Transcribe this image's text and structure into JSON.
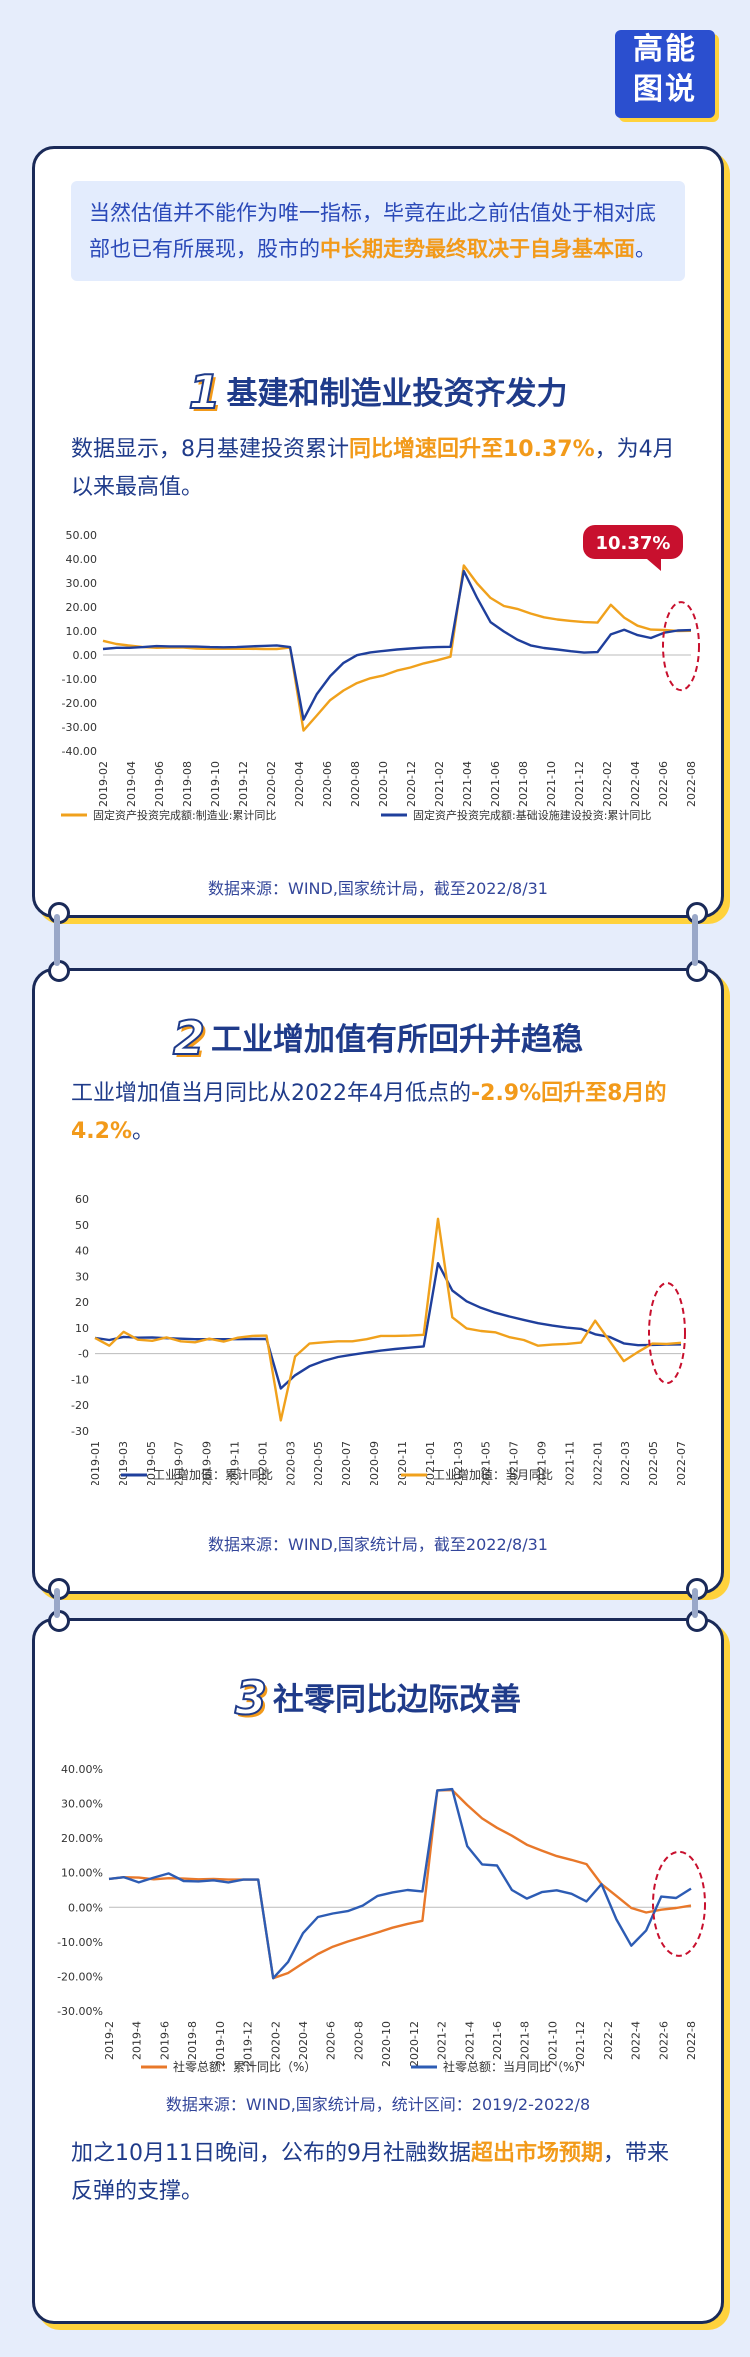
{
  "logo": {
    "line1": "高能",
    "line2": "图说"
  },
  "colors": {
    "orange": "#f0a11c",
    "blue": "#1f3f9c",
    "red": "#c8102e",
    "blueB": "#2d5cb4",
    "orangeB": "#e8782a"
  },
  "intro": {
    "pre": "当然估值并不能作为唯一指标，毕竟在此之前估值处于相对底部也已有所展现，股市的",
    "highlight": "中长期走势最终取决于自身基本面",
    "post": "。"
  },
  "section1": {
    "num": "1",
    "title": "基建和制造业投资齐发力",
    "text_pre": "数据显示，8月基建投资累计",
    "text_hl": "同比增速回升至10.37%",
    "text_post": "，为4月以来最高值。",
    "source": "数据来源：WIND,国家统计局，截至2022/8/31"
  },
  "section2": {
    "num": "2",
    "title": "工业增加值有所回升并趋稳",
    "text_pre": "工业增加值当月同比从2022年4月低点的",
    "text_hl": "-2.9%回升至8月的4.2%",
    "text_post": "。",
    "source": "数据来源：WIND,国家统计局，截至2022/8/31"
  },
  "section3": {
    "num": "3",
    "title": "社零同比边际改善",
    "source": "数据来源：WIND,国家统计局，统计区间：2019/2-2022/8",
    "text_pre": "加之10月11日晚间，公布的9月社融数据",
    "text_hl": "超出市场预期",
    "text_post": "，带来反弹的支撑。"
  },
  "chart_data": [
    {
      "type": "line",
      "ylim": [
        -40,
        50
      ],
      "yticks": [
        "50.00",
        "40.00",
        "30.00",
        "20.00",
        "10.00",
        "0.00",
        "-10.00",
        "-20.00",
        "-30.00",
        "-40.00"
      ],
      "ytick_values": [
        50,
        40,
        30,
        20,
        10,
        0,
        -10,
        -20,
        -30,
        -40
      ],
      "x_tick_labels": [
        "2019-02",
        "2019-04",
        "2019-06",
        "2019-08",
        "2019-10",
        "2019-12",
        "2020-02",
        "2020-04",
        "2020-06",
        "2020-08",
        "2020-10",
        "2020-12",
        "2021-02",
        "2021-04",
        "2021-06",
        "2021-08",
        "2021-10",
        "2021-12",
        "2022-02",
        "2022-04",
        "2022-06",
        "2022-08"
      ],
      "annotation": "10.37%",
      "series": [
        {
          "name": "固定资产投资完成额:制造业:累计同比",
          "values": [
            5.9,
            4.6,
            3.9,
            3.3,
            3.0,
            3.1,
            3.1,
            2.7,
            2.6,
            2.6,
            2.6,
            2.6,
            2.5,
            2.5,
            3.1,
            -31.5,
            -25.2,
            -18.8,
            -14.8,
            -11.7,
            -9.7,
            -8.5,
            -6.5,
            -5.2,
            -3.5,
            -2.2,
            -0.7,
            37.3,
            29.8,
            23.8,
            20.4,
            19.2,
            17.3,
            15.7,
            14.8,
            14.2,
            13.7,
            13.5,
            20.9,
            15.6,
            12.2,
            10.6,
            10.4,
            10.0,
            10.1
          ],
          "color": "#f0a11c"
        },
        {
          "name": "固定资产投资完成额:基础设施建设投资:累计同比",
          "values": [
            2.5,
            3.0,
            3.0,
            3.3,
            3.7,
            3.6,
            3.6,
            3.5,
            3.3,
            3.2,
            3.3,
            3.6,
            3.8,
            4.0,
            3.3,
            -26.9,
            -16.3,
            -8.8,
            -3.3,
            -0.1,
            1.1,
            1.7,
            2.3,
            2.7,
            3.1,
            3.3,
            3.4,
            35.0,
            23.7,
            13.7,
            9.8,
            6.4,
            4.0,
            2.9,
            2.3,
            1.6,
            1.0,
            1.2,
            8.6,
            10.5,
            8.3,
            7.1,
            9.3,
            10.2,
            10.37
          ],
          "color": "#1f3f9c"
        }
      ]
    },
    {
      "type": "line",
      "ylim": [
        -30,
        60
      ],
      "yticks": [
        "60",
        "50",
        "40",
        "30",
        "20",
        "10",
        "-0",
        "-10",
        "-20",
        "-30"
      ],
      "ytick_values": [
        60,
        50,
        40,
        30,
        20,
        10,
        0,
        -10,
        -20,
        -30
      ],
      "x_tick_labels": [
        "2019-01",
        "2019-03",
        "2019-05",
        "2019-07",
        "2019-09",
        "2019-11",
        "2020-01",
        "2020-03",
        "2020-05",
        "2020-07",
        "2020-09",
        "2020-11",
        "2021-01",
        "2021-03",
        "2021-05",
        "2021-07",
        "2021-09",
        "2021-11",
        "2022-01",
        "2022-03",
        "2022-05",
        "2022-07"
      ],
      "series": [
        {
          "name": "工业增加值：累计同比",
          "values": [
            6.1,
            5.3,
            6.5,
            6.2,
            6.3,
            6.0,
            5.8,
            5.6,
            5.6,
            5.6,
            5.6,
            5.7,
            5.7,
            -13.5,
            -8.4,
            -4.9,
            -2.8,
            -1.3,
            -0.4,
            0.4,
            1.2,
            1.8,
            2.3,
            2.8,
            35.1,
            24.5,
            20.3,
            17.8,
            15.9,
            14.4,
            13.1,
            11.8,
            10.9,
            10.1,
            9.6,
            7.5,
            6.5,
            4.0,
            3.3,
            3.4,
            3.5,
            3.6
          ],
          "color": "#1f3f9c"
        },
        {
          "name": "工业增加值：当月同比",
          "values": [
            6.1,
            3.1,
            8.5,
            5.4,
            5.0,
            6.3,
            4.8,
            4.4,
            5.8,
            4.7,
            6.2,
            6.9,
            7.0,
            -25.9,
            -1.1,
            3.9,
            4.4,
            4.8,
            4.8,
            5.6,
            6.9,
            6.9,
            7.0,
            7.3,
            52.3,
            14.1,
            9.8,
            8.8,
            8.3,
            6.4,
            5.3,
            3.1,
            3.5,
            3.8,
            4.3,
            12.8,
            5.0,
            -2.9,
            0.7,
            3.9,
            3.8,
            4.2
          ],
          "color": "#f0a11c"
        }
      ]
    },
    {
      "type": "line",
      "ylim": [
        -30,
        40
      ],
      "yticks": [
        "40.00%",
        "30.00%",
        "20.00%",
        "10.00%",
        "0.00%",
        "-10.00%",
        "-20.00%",
        "-30.00%"
      ],
      "ytick_values": [
        40,
        30,
        20,
        10,
        0,
        -10,
        -20,
        -30
      ],
      "x_tick_labels": [
        "2019-2",
        "2019-4",
        "2019-6",
        "2019-8",
        "2019-10",
        "2019-12",
        "2020-2",
        "2020-4",
        "2020-6",
        "2020-8",
        "2020-10",
        "2020-12",
        "2021-2",
        "2021-4",
        "2021-6",
        "2021-8",
        "2021-10",
        "2021-12",
        "2022-2",
        "2022-4",
        "2022-6",
        "2022-8"
      ],
      "series": [
        {
          "name": "社零总额：累计同比（%）",
          "values": [
            8.2,
            8.7,
            8.6,
            8.1,
            8.4,
            8.3,
            8.1,
            8.2,
            8.0,
            8.0,
            8.0,
            -20.5,
            -19.0,
            -16.2,
            -13.5,
            -11.4,
            -9.9,
            -8.6,
            -7.3,
            -5.9,
            -4.8,
            -3.9,
            33.8,
            33.9,
            29.6,
            25.7,
            23.0,
            20.7,
            18.1,
            16.4,
            14.8,
            13.7,
            12.5,
            6.7,
            3.3,
            -0.2,
            -1.5,
            -0.7,
            -0.2,
            0.5
          ],
          "color": "#e8782a"
        },
        {
          "name": "社零总额：当月同比（%）",
          "values": [
            8.2,
            8.7,
            7.2,
            8.6,
            9.8,
            7.6,
            7.5,
            7.8,
            7.2,
            8.0,
            8.0,
            -20.5,
            -15.8,
            -7.5,
            -2.8,
            -1.8,
            -1.1,
            0.5,
            3.3,
            4.3,
            5.0,
            4.6,
            33.8,
            34.2,
            17.7,
            12.4,
            12.1,
            5.0,
            2.5,
            4.4,
            4.9,
            3.9,
            1.7,
            6.7,
            -3.5,
            -11.1,
            -6.7,
            3.1,
            2.7,
            5.4
          ],
          "color": "#2d5cb4"
        }
      ]
    }
  ]
}
